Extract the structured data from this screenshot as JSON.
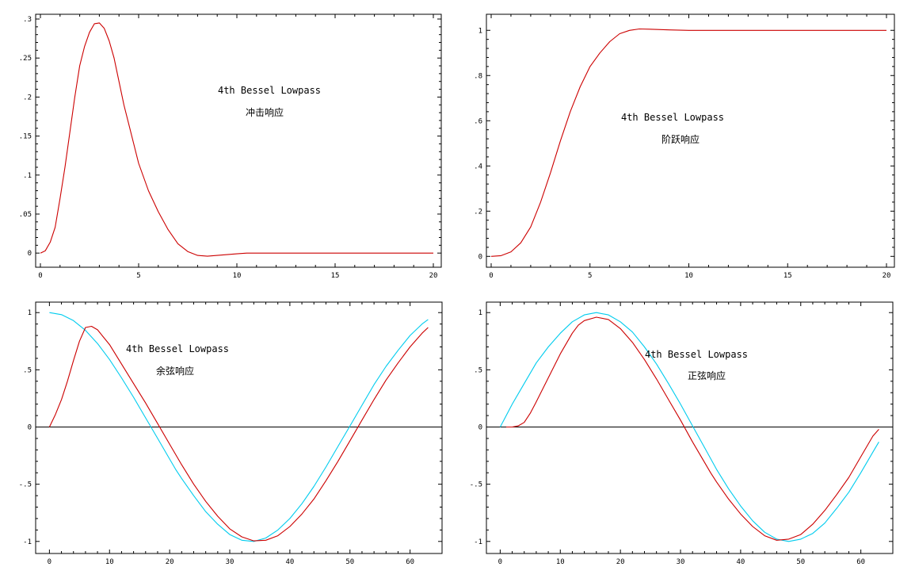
{
  "chart_data": [
    {
      "type": "line",
      "annotations": [
        "4th Bessel Lowpass",
        "冲击响应"
      ],
      "xlim": [
        0,
        20
      ],
      "ylim": [
        -0.01,
        0.3
      ],
      "xticks": [
        0,
        5,
        10,
        15,
        20
      ],
      "yticks": [
        0,
        0.05,
        0.1,
        0.15,
        0.2,
        0.25,
        0.3
      ],
      "colors": {
        "response": "#cc0000"
      },
      "series": [
        {
          "x": [
            0,
            0.25,
            0.5,
            0.75,
            1,
            1.25,
            1.5,
            1.75,
            2,
            2.25,
            2.5,
            2.75,
            3,
            3.25,
            3.5,
            3.75,
            4,
            4.25,
            4.5,
            4.75,
            5,
            5.5,
            6,
            6.5,
            7,
            7.5,
            8,
            8.5,
            9,
            9.5,
            10,
            10.5,
            11,
            12,
            14,
            16,
            18,
            20
          ],
          "y": [
            0,
            0.003,
            0.014,
            0.033,
            0.07,
            0.11,
            0.155,
            0.2,
            0.24,
            0.265,
            0.283,
            0.294,
            0.295,
            0.288,
            0.272,
            0.25,
            0.22,
            0.19,
            0.165,
            0.14,
            0.115,
            0.08,
            0.053,
            0.03,
            0.012,
            0.002,
            -0.003,
            -0.004,
            -0.003,
            -0.002,
            -0.001,
            0,
            0,
            0,
            0,
            0,
            0,
            0
          ]
        }
      ]
    },
    {
      "type": "line",
      "annotations": [
        "4th Bessel Lowpass",
        "阶跃响应"
      ],
      "xlim": [
        0,
        20
      ],
      "ylim": [
        -0.02,
        1.05
      ],
      "xticks": [
        0,
        5,
        10,
        15,
        20
      ],
      "yticks": [
        0,
        0.2,
        0.4,
        0.6,
        0.8,
        1
      ],
      "colors": {
        "response": "#cc0000"
      },
      "series": [
        {
          "x": [
            0,
            0.5,
            1,
            1.5,
            2,
            2.5,
            3,
            3.5,
            4,
            4.5,
            5,
            5.5,
            6,
            6.5,
            7,
            7.5,
            8,
            9,
            10,
            12,
            14,
            16,
            18,
            20
          ],
          "y": [
            0,
            0.003,
            0.02,
            0.06,
            0.13,
            0.24,
            0.37,
            0.51,
            0.64,
            0.75,
            0.84,
            0.9,
            0.95,
            0.985,
            1.0,
            1.006,
            1.005,
            1.002,
            1.0,
            1.0,
            1.0,
            1.0,
            1.0,
            1.0
          ]
        }
      ]
    },
    {
      "type": "line",
      "annotations": [
        "4th Bessel Lowpass",
        "余弦响应"
      ],
      "xlim": [
        -1.5,
        64
      ],
      "ylim": [
        -1.05,
        1.05
      ],
      "xticks": [
        0,
        10,
        20,
        30,
        40,
        50,
        60
      ],
      "yticks": [
        -1,
        -0.5,
        0,
        0.5,
        1
      ],
      "zero_line": true,
      "colors": {
        "input": "#00ccee",
        "output": "#cc0000"
      },
      "series": [
        {
          "role": "input",
          "x": [
            0,
            2,
            4,
            6,
            8,
            10,
            12,
            14,
            16,
            18,
            20,
            21,
            22,
            24,
            26,
            28,
            30,
            32,
            34,
            36,
            38,
            40,
            42,
            44,
            46,
            48,
            50,
            52,
            54,
            56,
            58,
            60,
            62,
            63
          ],
          "y": [
            1,
            0.982,
            0.93,
            0.845,
            0.73,
            0.59,
            0.43,
            0.26,
            0.08,
            -0.1,
            -0.28,
            -0.37,
            -0.45,
            -0.6,
            -0.74,
            -0.85,
            -0.94,
            -0.99,
            -1.0,
            -0.97,
            -0.9,
            -0.8,
            -0.67,
            -0.52,
            -0.35,
            -0.17,
            0.01,
            0.19,
            0.37,
            0.53,
            0.67,
            0.8,
            0.9,
            0.94
          ]
        },
        {
          "role": "output",
          "x": [
            0,
            1,
            2,
            3,
            4,
            5,
            6,
            7,
            8,
            10,
            12,
            14,
            16,
            18,
            20,
            22,
            24,
            26,
            28,
            30,
            32,
            34,
            36,
            38,
            40,
            42,
            44,
            46,
            48,
            50,
            52,
            54,
            56,
            58,
            60,
            62,
            63
          ],
          "y": [
            0,
            0.11,
            0.24,
            0.4,
            0.58,
            0.75,
            0.87,
            0.88,
            0.85,
            0.72,
            0.55,
            0.38,
            0.21,
            0.03,
            -0.15,
            -0.33,
            -0.5,
            -0.65,
            -0.78,
            -0.89,
            -0.96,
            -0.995,
            -0.99,
            -0.95,
            -0.87,
            -0.76,
            -0.63,
            -0.47,
            -0.3,
            -0.12,
            0.06,
            0.24,
            0.41,
            0.56,
            0.7,
            0.82,
            0.87
          ]
        }
      ]
    },
    {
      "type": "line",
      "annotations": [
        "4th Bessel Lowpass",
        "正弦响应"
      ],
      "xlim": [
        -1.5,
        64
      ],
      "ylim": [
        -1.05,
        1.05
      ],
      "xticks": [
        0,
        10,
        20,
        30,
        40,
        50,
        60
      ],
      "yticks": [
        -1,
        -0.5,
        0,
        0.5,
        1
      ],
      "zero_line": true,
      "colors": {
        "input": "#00ccee",
        "output": "#cc0000"
      },
      "series": [
        {
          "role": "input",
          "x": [
            0,
            2,
            4,
            6,
            8,
            10,
            12,
            14,
            16,
            18,
            20,
            22,
            24,
            26,
            28,
            30,
            32,
            34,
            36,
            38,
            40,
            42,
            44,
            46,
            48,
            50,
            52,
            54,
            56,
            58,
            60,
            62,
            63
          ],
          "y": [
            0,
            0.2,
            0.38,
            0.56,
            0.7,
            0.82,
            0.92,
            0.98,
            1.0,
            0.98,
            0.92,
            0.83,
            0.7,
            0.55,
            0.38,
            0.2,
            0.01,
            -0.18,
            -0.37,
            -0.54,
            -0.69,
            -0.82,
            -0.92,
            -0.98,
            -1.0,
            -0.98,
            -0.93,
            -0.84,
            -0.71,
            -0.57,
            -0.4,
            -0.22,
            -0.13
          ]
        },
        {
          "role": "output",
          "x": [
            1,
            2,
            3,
            4,
            5,
            6,
            8,
            10,
            12,
            13,
            14,
            16,
            18,
            20,
            22,
            24,
            26,
            28,
            30,
            32,
            34,
            35,
            36,
            38,
            40,
            42,
            44,
            46,
            48,
            50,
            52,
            54,
            55,
            56,
            58,
            60,
            62,
            63
          ],
          "y": [
            0,
            0.0,
            0.01,
            0.04,
            0.12,
            0.22,
            0.43,
            0.64,
            0.82,
            0.89,
            0.93,
            0.96,
            0.94,
            0.86,
            0.74,
            0.59,
            0.42,
            0.24,
            0.06,
            -0.13,
            -0.31,
            -0.4,
            -0.48,
            -0.63,
            -0.76,
            -0.87,
            -0.95,
            -0.99,
            -0.98,
            -0.94,
            -0.85,
            -0.73,
            -0.66,
            -0.59,
            -0.44,
            -0.26,
            -0.08,
            -0.02
          ]
        }
      ]
    }
  ]
}
